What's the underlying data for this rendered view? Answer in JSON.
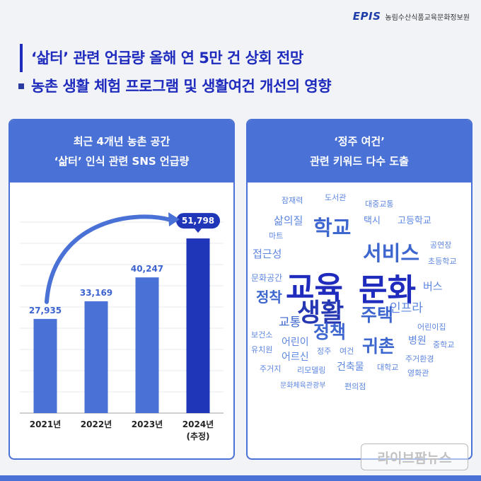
{
  "brand": {
    "logo": "EPIS",
    "name": "농림수산식품교육문화정보원"
  },
  "title": {
    "line1": "‘삶터’ 관련 언급량 올해 연 5만 건 상회 전망",
    "line2": "농촌 생활 체험 프로그램 및 생활여건 개선의 영향"
  },
  "left_panel": {
    "header_line1": "최근 4개년 농촌 공간",
    "header_line2": "‘삶터’ 인식 관련 SNS 언급량"
  },
  "chart_data": {
    "type": "bar",
    "categories": [
      "2021년",
      "2022년",
      "2023년",
      "2024년"
    ],
    "category_sublabels": [
      "",
      "",
      "",
      "(추정)"
    ],
    "values": [
      27935,
      33169,
      40247,
      51798
    ],
    "value_labels": [
      "27,935",
      "33,169",
      "40,247",
      "51,798"
    ],
    "ylim": [
      0,
      60000
    ],
    "grid": true,
    "highlight_index": 3,
    "colors": {
      "bar": "#4a72d6",
      "highlight_bar": "#1f36b8",
      "label": "#3c63cf"
    }
  },
  "right_panel": {
    "header_line1": "‘정주 여건’",
    "header_line2": "관련 키워드 다수 도출",
    "words": [
      {
        "text": "교육",
        "size": 44,
        "weight": "bold",
        "color": "#1f2bbd"
      },
      {
        "text": "문화",
        "size": 44,
        "weight": "bold",
        "color": "#1f2bbd"
      },
      {
        "text": "생활",
        "size": 36,
        "weight": "bold",
        "color": "#2637b3"
      },
      {
        "text": "서비스",
        "size": 29,
        "weight": "bold",
        "color": "#3d66cf"
      },
      {
        "text": "학교",
        "size": 29,
        "weight": "bold",
        "color": "#3d66cf"
      },
      {
        "text": "주택",
        "size": 25,
        "weight": "bold",
        "color": "#3d66cf"
      },
      {
        "text": "정책",
        "size": 25,
        "weight": "bold",
        "color": "#3d66cf"
      },
      {
        "text": "귀촌",
        "size": 25,
        "weight": "bold",
        "color": "#3d66cf"
      },
      {
        "text": "정착",
        "size": 20,
        "weight": "bold",
        "color": "#3d66cf"
      },
      {
        "text": "교통",
        "size": 17,
        "weight": "normal",
        "color": "#3d66cf"
      },
      {
        "text": "인프라",
        "size": 17,
        "weight": "normal",
        "color": "#5d86e0"
      },
      {
        "text": "삶의질",
        "size": 15,
        "weight": "normal",
        "color": "#5d86e0"
      },
      {
        "text": "접근성",
        "size": 15,
        "weight": "normal",
        "color": "#5d86e0"
      },
      {
        "text": "버스",
        "size": 15,
        "weight": "normal",
        "color": "#5d86e0"
      },
      {
        "text": "어린이",
        "size": 14,
        "weight": "normal",
        "color": "#5d86e0"
      },
      {
        "text": "어르신",
        "size": 14,
        "weight": "normal",
        "color": "#5d86e0"
      },
      {
        "text": "병원",
        "size": 14,
        "weight": "normal",
        "color": "#5d86e0"
      },
      {
        "text": "건축물",
        "size": 14,
        "weight": "normal",
        "color": "#5d86e0"
      },
      {
        "text": "택시",
        "size": 13,
        "weight": "normal",
        "color": "#5d86e0"
      },
      {
        "text": "고등학교",
        "size": 13,
        "weight": "normal",
        "color": "#5d86e0"
      },
      {
        "text": "문화공간",
        "size": 12,
        "weight": "normal",
        "color": "#5d86e0"
      },
      {
        "text": "대중교통",
        "size": 11,
        "weight": "normal",
        "color": "#5d86e0"
      },
      {
        "text": "잠재력",
        "size": 11,
        "weight": "normal",
        "color": "#5d86e0"
      },
      {
        "text": "도서관",
        "size": 11,
        "weight": "normal",
        "color": "#5d86e0"
      },
      {
        "text": "마트",
        "size": 11,
        "weight": "normal",
        "color": "#5d86e0"
      },
      {
        "text": "공연장",
        "size": 11,
        "weight": "normal",
        "color": "#5d86e0"
      },
      {
        "text": "초등학교",
        "size": 11,
        "weight": "normal",
        "color": "#5d86e0"
      },
      {
        "text": "어린이집",
        "size": 11,
        "weight": "normal",
        "color": "#5d86e0"
      },
      {
        "text": "중학교",
        "size": 11,
        "weight": "normal",
        "color": "#5d86e0"
      },
      {
        "text": "보건소",
        "size": 11,
        "weight": "normal",
        "color": "#5d86e0"
      },
      {
        "text": "유치원",
        "size": 11,
        "weight": "normal",
        "color": "#5d86e0"
      },
      {
        "text": "정주",
        "size": 11,
        "weight": "normal",
        "color": "#5d86e0"
      },
      {
        "text": "여건",
        "size": 11,
        "weight": "normal",
        "color": "#5d86e0"
      },
      {
        "text": "주거환경",
        "size": 11,
        "weight": "normal",
        "color": "#5d86e0"
      },
      {
        "text": "주거지",
        "size": 11,
        "weight": "normal",
        "color": "#5d86e0"
      },
      {
        "text": "리모델링",
        "size": 11,
        "weight": "normal",
        "color": "#5d86e0"
      },
      {
        "text": "대학교",
        "size": 11,
        "weight": "normal",
        "color": "#5d86e0"
      },
      {
        "text": "영화관",
        "size": 11,
        "weight": "normal",
        "color": "#5d86e0"
      },
      {
        "text": "문화체육관광부",
        "size": 10,
        "weight": "normal",
        "color": "#5d86e0"
      },
      {
        "text": "편의점",
        "size": 11,
        "weight": "normal",
        "color": "#5d86e0"
      }
    ]
  },
  "watermark": "라이브팜뉴스"
}
